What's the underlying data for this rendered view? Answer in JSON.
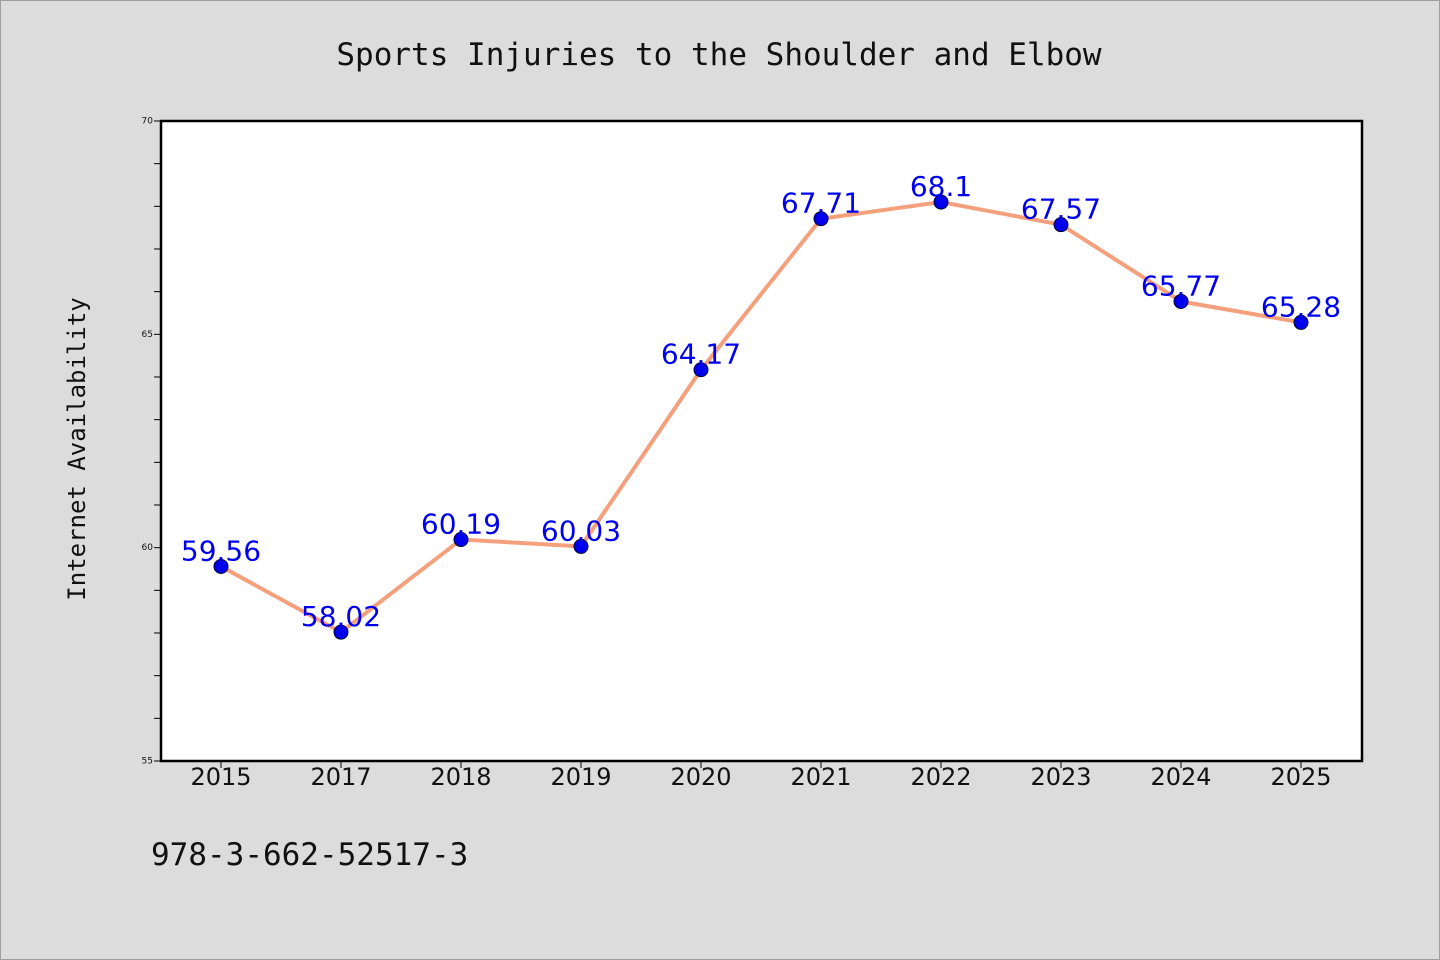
{
  "chart_data": {
    "type": "line",
    "title": "Sports Injuries to the Shoulder and Elbow",
    "xlabel": "",
    "ylabel": "Internet Availability",
    "categories": [
      "2015",
      "2017",
      "2018",
      "2019",
      "2020",
      "2021",
      "2022",
      "2023",
      "2024",
      "2025"
    ],
    "series": [
      {
        "values": [
          59.56,
          58.02,
          60.19,
          60.03,
          64.17,
          67.71,
          68.1,
          67.57,
          65.77,
          65.28
        ],
        "data_labels": [
          "59.56",
          "58.02",
          "60.19",
          "60.03",
          "64.17",
          "67.71",
          "68.1",
          "67.57",
          "65.77",
          "65.28"
        ],
        "line_color": "#f4a07c",
        "marker_color": "#0000ee"
      }
    ],
    "ylim": [
      55,
      70
    ],
    "yticks": [
      55,
      60,
      65,
      70
    ],
    "ytick_labels": [
      "55",
      "60",
      "65",
      "70"
    ],
    "grid": false,
    "legend": "none"
  },
  "footer": {
    "isbn": "978-3-662-52517-3"
  },
  "colors": {
    "background": "#dcdcdc",
    "plot_background": "#ffffff",
    "axis": "#000000",
    "label_color": "#0000ee"
  }
}
